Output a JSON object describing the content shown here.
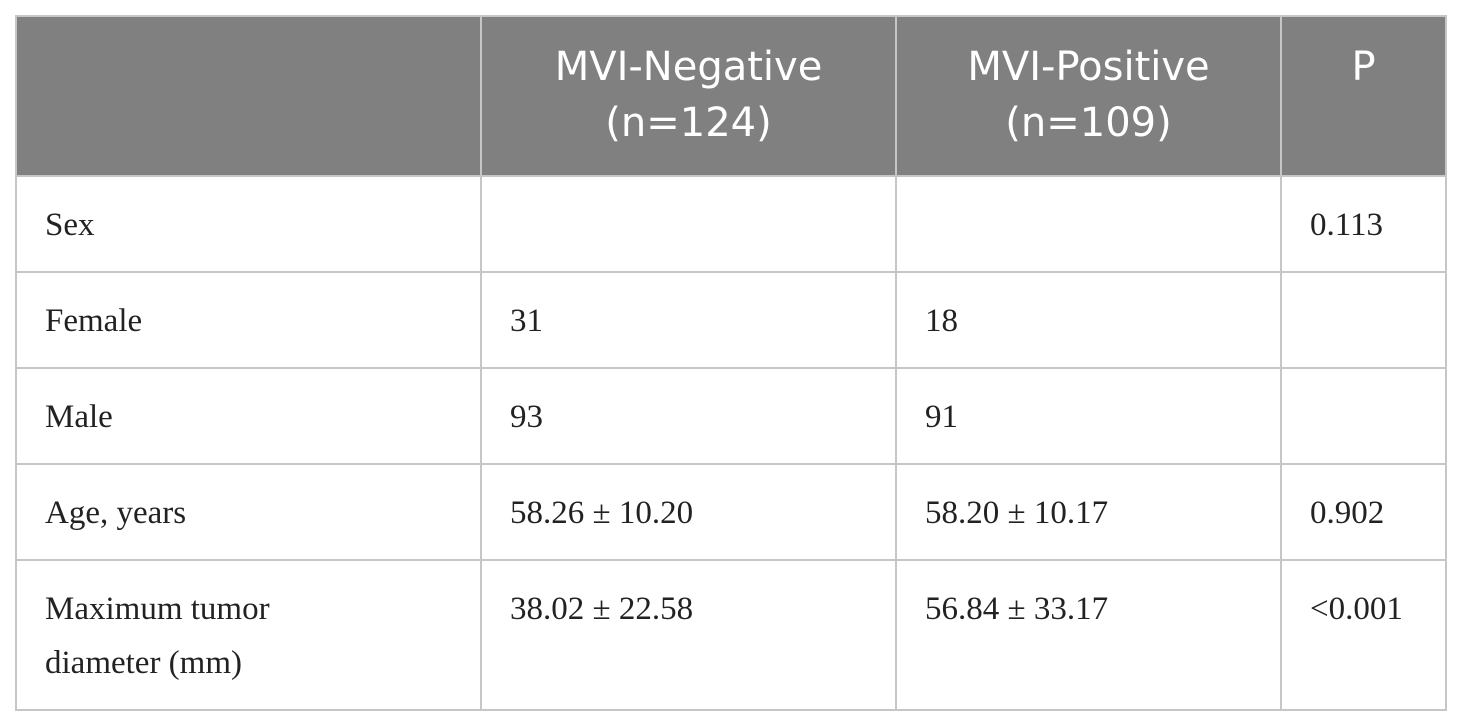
{
  "table": {
    "columns": [
      [
        "MVI-Negative",
        "(n=124)"
      ],
      [
        "MVI-Positive",
        "(n=109)"
      ],
      [
        "P"
      ]
    ],
    "rows": [
      {
        "label": [
          "Sex"
        ],
        "p": "0.113"
      },
      {
        "label": [
          "Female"
        ],
        "negative": "31",
        "positive": "18"
      },
      {
        "label": [
          "Male"
        ],
        "negative": "93",
        "positive": "91"
      },
      {
        "label": [
          "Age, years"
        ],
        "negative": "58.26 ± 10.20",
        "positive": "58.20 ± 10.17",
        "p": "0.902"
      },
      {
        "label": [
          "Maximum tumor",
          "diameter (mm)"
        ],
        "negative": "38.02 ± 22.58",
        "positive": "56.84 ± 33.17",
        "p": "<0.001"
      }
    ]
  }
}
